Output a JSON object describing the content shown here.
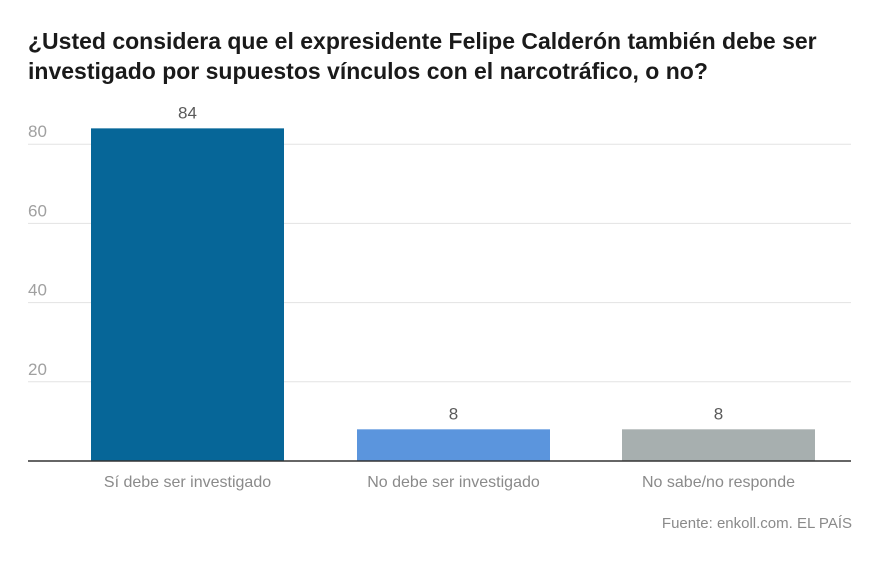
{
  "title": "¿Usted considera que el expresidente Felipe Calderón también debe ser investigado por supuestos vínculos con el narcotráfico, o no?",
  "source": "Fuente: enkoll.com. EL PAÍS",
  "colors": {
    "series": [
      "#066698",
      "#5b95dd",
      "#a7afaf"
    ],
    "grid": "#e3e3e3",
    "axis": "#333333",
    "tick_text": "#a0a0a0",
    "label_text": "#5a5a5a",
    "category_text": "#8a8a8a"
  },
  "chart_data": {
    "type": "bar",
    "categories": [
      "Sí debe ser investigado",
      "No debe ser investigado",
      "No sabe/no responde"
    ],
    "values": [
      84,
      8,
      8
    ],
    "data_labels": [
      "84",
      "8",
      "8"
    ],
    "yticks": [
      20,
      40,
      60,
      80
    ],
    "ytick_labels": [
      "20",
      "40",
      "60",
      "80"
    ],
    "ylim": [
      0,
      80
    ],
    "grid": true
  }
}
